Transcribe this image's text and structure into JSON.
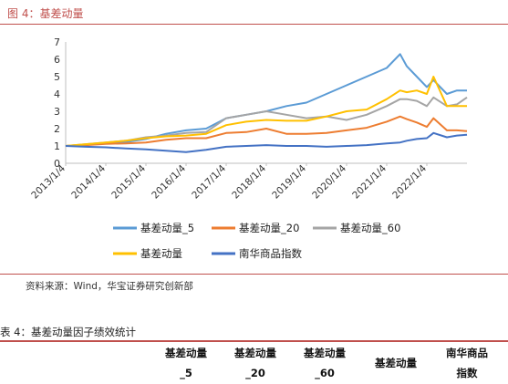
{
  "figure": {
    "title": "图 4：基差动量",
    "source": "资料来源：Wind，华宝证券研究创新部"
  },
  "table": {
    "title": "表 4：基差动量因子绩效统计",
    "headers": [
      {
        "line1": "基差动量",
        "line2": "_5"
      },
      {
        "line1": "基差动量",
        "line2": "_20"
      },
      {
        "line1": "基差动量",
        "line2": "_60"
      },
      {
        "line1": "基差动量",
        "line2": ""
      },
      {
        "line1": "南华商品",
        "line2": "指数"
      }
    ]
  },
  "colors": {
    "s5": "#5b9bd5",
    "s20": "#ed7d31",
    "s60": "#a5a5a5",
    "s": "#ffc000",
    "nanhua": "#4472c4",
    "accent": "#c0504d"
  },
  "chart_data": {
    "type": "line",
    "title": "",
    "xlabel": "",
    "ylabel": "",
    "ylim": [
      0,
      7
    ],
    "yticks": [
      "0",
      "1",
      "2",
      "3",
      "4",
      "5",
      "6",
      "7"
    ],
    "xticks": [
      "2013/1/4",
      "2014/1/4",
      "2015/1/4",
      "2016/1/4",
      "2017/1/4",
      "2018/1/4",
      "2019/1/4",
      "2020/1/4",
      "2021/1/4",
      "2022/1/4"
    ],
    "x_dates": [
      "2013-01",
      "2013-07",
      "2014-01",
      "2014-07",
      "2015-01",
      "2015-07",
      "2016-01",
      "2016-07",
      "2017-01",
      "2017-07",
      "2018-01",
      "2018-07",
      "2019-01",
      "2019-07",
      "2020-01",
      "2020-07",
      "2021-01",
      "2021-05",
      "2021-07",
      "2021-10",
      "2022-01",
      "2022-03",
      "2022-07",
      "2022-10",
      "2023-01"
    ],
    "legend_position": "bottom",
    "series": [
      {
        "name": "基差动量_5",
        "color_key": "s5",
        "values": [
          1.0,
          1.08,
          1.15,
          1.22,
          1.4,
          1.7,
          1.9,
          2.0,
          2.6,
          2.8,
          3.0,
          3.3,
          3.5,
          4.0,
          4.5,
          5.0,
          5.5,
          6.3,
          5.6,
          5.0,
          4.4,
          4.8,
          4.0,
          4.2,
          4.2
        ]
      },
      {
        "name": "基差动量_20",
        "color_key": "s20",
        "values": [
          1.0,
          1.05,
          1.12,
          1.15,
          1.2,
          1.35,
          1.45,
          1.45,
          1.75,
          1.8,
          2.0,
          1.7,
          1.7,
          1.75,
          1.9,
          2.05,
          2.4,
          2.7,
          2.55,
          2.35,
          2.1,
          2.6,
          1.9,
          1.9,
          1.85
        ]
      },
      {
        "name": "基差动量_60",
        "color_key": "s60",
        "values": [
          1.0,
          1.1,
          1.2,
          1.3,
          1.5,
          1.6,
          1.75,
          1.8,
          2.6,
          2.8,
          3.0,
          2.8,
          2.6,
          2.7,
          2.5,
          2.8,
          3.3,
          3.7,
          3.7,
          3.6,
          3.3,
          3.8,
          3.3,
          3.4,
          3.8
        ]
      },
      {
        "name": "基差动量",
        "color_key": "s",
        "values": [
          1.0,
          1.1,
          1.2,
          1.3,
          1.45,
          1.55,
          1.6,
          1.7,
          2.2,
          2.4,
          2.5,
          2.45,
          2.45,
          2.7,
          3.0,
          3.1,
          3.7,
          4.2,
          4.1,
          4.2,
          4.0,
          5.0,
          3.3,
          3.3,
          3.3
        ]
      },
      {
        "name": "南华商品指数",
        "color_key": "nanhua",
        "values": [
          1.0,
          0.95,
          0.92,
          0.85,
          0.8,
          0.72,
          0.65,
          0.78,
          0.95,
          1.0,
          1.05,
          1.0,
          1.0,
          0.95,
          1.0,
          1.05,
          1.15,
          1.2,
          1.3,
          1.4,
          1.45,
          1.75,
          1.5,
          1.6,
          1.65
        ]
      }
    ]
  }
}
